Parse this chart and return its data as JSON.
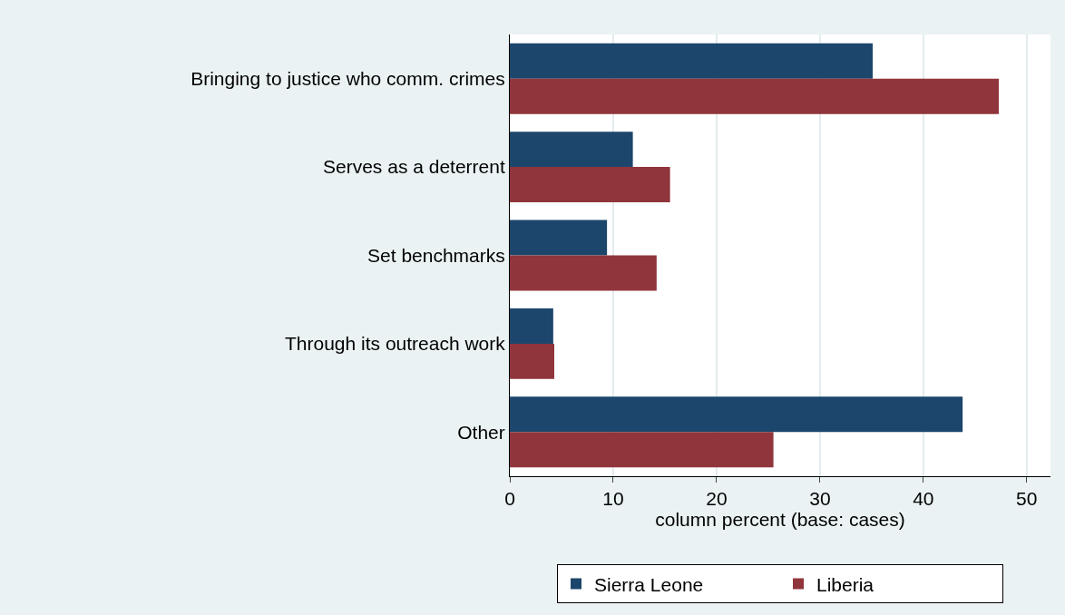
{
  "chart_data": {
    "type": "bar",
    "orientation": "horizontal",
    "categories": [
      "Bringing to justice who comm. crimes",
      "Serves as a deterrent",
      "Set benchmarks",
      "Through its outreach work",
      "Other"
    ],
    "series": [
      {
        "name": "Sierra Leone",
        "color": "#1c466c",
        "values": [
          35.1,
          11.9,
          9.4,
          4.2,
          43.8
        ]
      },
      {
        "name": "Liberia",
        "color": "#90353b",
        "values": [
          47.3,
          15.5,
          14.2,
          4.3,
          25.5
        ]
      }
    ],
    "xlabel": "column percent (base: cases)",
    "xlim": [
      0,
      52.3
    ],
    "xticks": [
      0,
      10,
      20,
      30,
      40,
      50
    ],
    "grid": "x",
    "legend": "bottom"
  }
}
